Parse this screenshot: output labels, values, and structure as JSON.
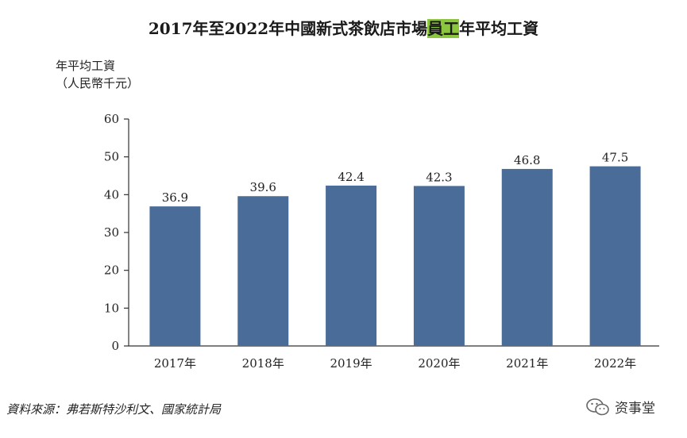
{
  "title_part1": "2017年至2022年中國新式茶飲店市場",
  "title_highlight": "員工",
  "title_part2": "年平均工資",
  "ylabel_line1": "年平均工資",
  "ylabel_line2": "（人民幣千元）",
  "source": "資料來源：弗若斯特沙利文、國家統計局",
  "watermark": "资事堂",
  "colors": {
    "bar": "#4a6c99",
    "axis": "#333333"
  },
  "chart_data": {
    "type": "bar",
    "title": "2017年至2022年中國新式茶飲店市場員工年平均工資",
    "ylabel": "年平均工資（人民幣千元）",
    "xlabel": "",
    "categories": [
      "2017年",
      "2018年",
      "2019年",
      "2020年",
      "2021年",
      "2022年"
    ],
    "values": [
      36.9,
      39.6,
      42.4,
      42.3,
      46.8,
      47.5
    ],
    "value_labels": [
      "36.9",
      "39.6",
      "42.4",
      "42.3",
      "46.8",
      "47.5"
    ],
    "ylim": [
      0,
      60
    ],
    "yticks": [
      0,
      10,
      20,
      30,
      40,
      50,
      60
    ],
    "grid": false
  }
}
